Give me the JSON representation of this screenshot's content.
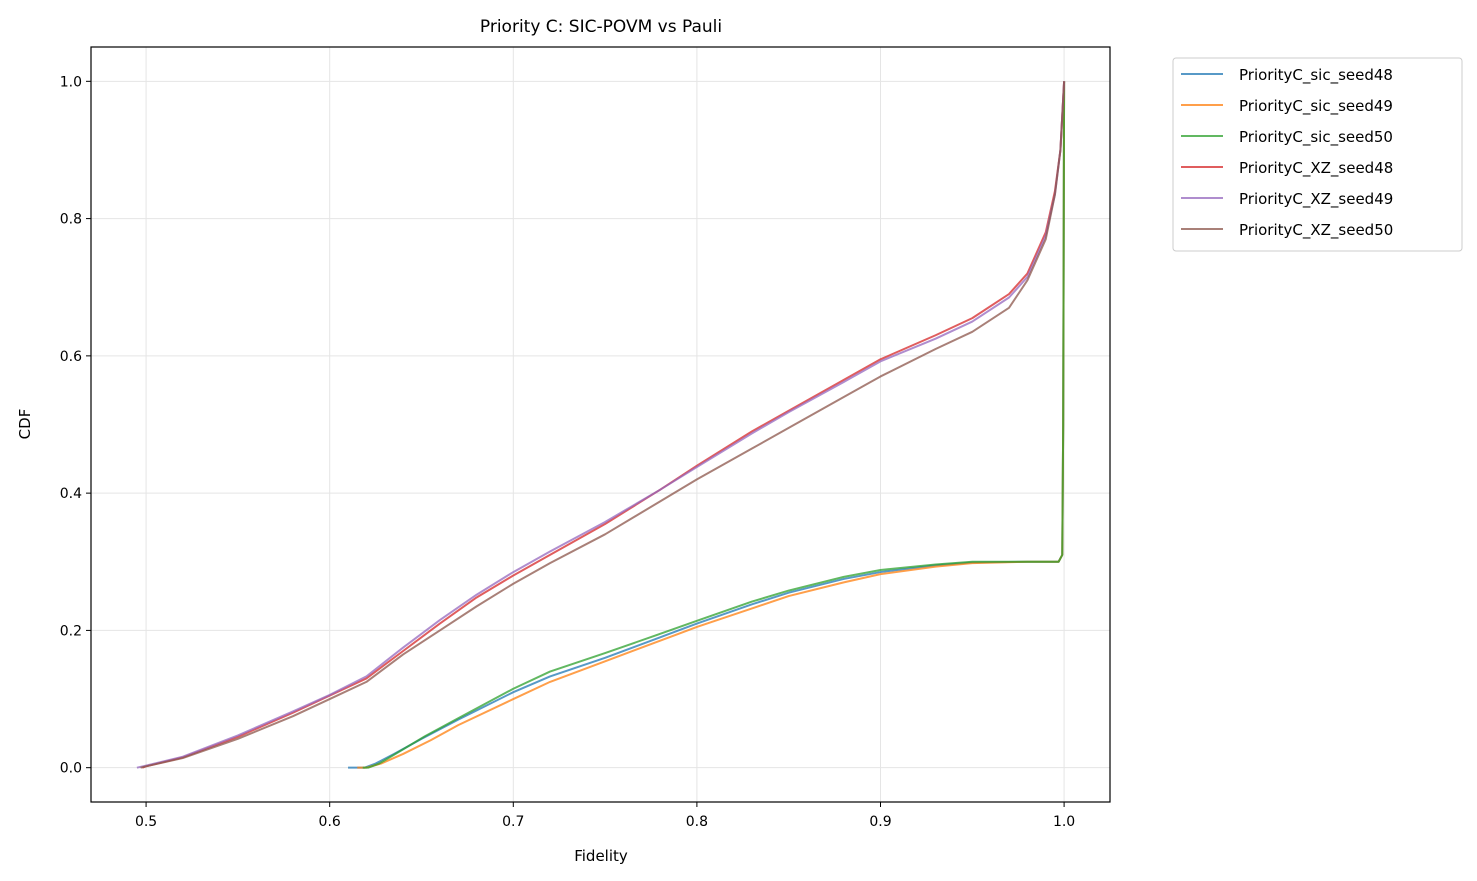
{
  "chart_data": {
    "type": "line",
    "title": "Priority C: SIC-POVM vs Pauli",
    "xlabel": "Fidelity",
    "ylabel": "CDF",
    "xlim": [
      0.47,
      1.025
    ],
    "ylim": [
      -0.05,
      1.05
    ],
    "xticks": [
      0.5,
      0.6,
      0.7,
      0.8,
      0.9,
      1.0
    ],
    "xtick_labels": [
      "0.5",
      "0.6",
      "0.7",
      "0.8",
      "0.9",
      "1.0"
    ],
    "yticks": [
      0.0,
      0.2,
      0.4,
      0.6,
      0.8,
      1.0
    ],
    "ytick_labels": [
      "0.0",
      "0.2",
      "0.4",
      "0.6",
      "0.8",
      "1.0"
    ],
    "grid": true,
    "legend_position": "outside-top-right",
    "series": [
      {
        "name": "PriorityC_sic_seed48",
        "color": "#1f77b4",
        "points": [
          [
            0.61,
            0.0
          ],
          [
            0.619,
            0.0
          ],
          [
            0.625,
            0.006
          ],
          [
            0.635,
            0.02
          ],
          [
            0.65,
            0.042
          ],
          [
            0.67,
            0.07
          ],
          [
            0.7,
            0.11
          ],
          [
            0.72,
            0.133
          ],
          [
            0.75,
            0.16
          ],
          [
            0.78,
            0.19
          ],
          [
            0.8,
            0.21
          ],
          [
            0.83,
            0.238
          ],
          [
            0.85,
            0.255
          ],
          [
            0.88,
            0.275
          ],
          [
            0.9,
            0.285
          ],
          [
            0.93,
            0.295
          ],
          [
            0.95,
            0.299
          ],
          [
            0.98,
            0.3
          ],
          [
            0.997,
            0.3
          ],
          [
            0.999,
            0.31
          ],
          [
            0.9995,
            0.5
          ],
          [
            1.0,
            1.0
          ]
        ]
      },
      {
        "name": "PriorityC_sic_seed49",
        "color": "#ff7f0e",
        "points": [
          [
            0.615,
            0.0
          ],
          [
            0.62,
            0.0
          ],
          [
            0.628,
            0.006
          ],
          [
            0.64,
            0.02
          ],
          [
            0.655,
            0.04
          ],
          [
            0.67,
            0.062
          ],
          [
            0.7,
            0.1
          ],
          [
            0.72,
            0.125
          ],
          [
            0.75,
            0.155
          ],
          [
            0.78,
            0.185
          ],
          [
            0.8,
            0.205
          ],
          [
            0.83,
            0.232
          ],
          [
            0.85,
            0.25
          ],
          [
            0.88,
            0.27
          ],
          [
            0.9,
            0.282
          ],
          [
            0.93,
            0.293
          ],
          [
            0.95,
            0.298
          ],
          [
            0.98,
            0.3
          ],
          [
            0.997,
            0.3
          ],
          [
            0.999,
            0.31
          ],
          [
            0.9995,
            0.5
          ],
          [
            1.0,
            1.0
          ]
        ]
      },
      {
        "name": "PriorityC_sic_seed50",
        "color": "#2ca02c",
        "points": [
          [
            0.618,
            0.0
          ],
          [
            0.621,
            0.0
          ],
          [
            0.627,
            0.006
          ],
          [
            0.637,
            0.022
          ],
          [
            0.652,
            0.046
          ],
          [
            0.67,
            0.072
          ],
          [
            0.7,
            0.115
          ],
          [
            0.72,
            0.14
          ],
          [
            0.75,
            0.167
          ],
          [
            0.78,
            0.195
          ],
          [
            0.8,
            0.214
          ],
          [
            0.83,
            0.242
          ],
          [
            0.85,
            0.258
          ],
          [
            0.88,
            0.278
          ],
          [
            0.9,
            0.288
          ],
          [
            0.93,
            0.296
          ],
          [
            0.95,
            0.3
          ],
          [
            0.98,
            0.3
          ],
          [
            0.997,
            0.3
          ],
          [
            0.999,
            0.31
          ],
          [
            0.9995,
            0.5
          ],
          [
            1.0,
            1.0
          ]
        ]
      },
      {
        "name": "PriorityC_XZ_seed48",
        "color": "#d62728",
        "points": [
          [
            0.498,
            0.0
          ],
          [
            0.5,
            0.002
          ],
          [
            0.52,
            0.015
          ],
          [
            0.55,
            0.045
          ],
          [
            0.58,
            0.08
          ],
          [
            0.6,
            0.105
          ],
          [
            0.62,
            0.13
          ],
          [
            0.64,
            0.17
          ],
          [
            0.66,
            0.21
          ],
          [
            0.68,
            0.248
          ],
          [
            0.7,
            0.28
          ],
          [
            0.72,
            0.31
          ],
          [
            0.75,
            0.355
          ],
          [
            0.78,
            0.405
          ],
          [
            0.8,
            0.44
          ],
          [
            0.83,
            0.49
          ],
          [
            0.85,
            0.52
          ],
          [
            0.88,
            0.565
          ],
          [
            0.9,
            0.595
          ],
          [
            0.93,
            0.63
          ],
          [
            0.95,
            0.655
          ],
          [
            0.97,
            0.69
          ],
          [
            0.98,
            0.72
          ],
          [
            0.99,
            0.78
          ],
          [
            0.995,
            0.84
          ],
          [
            0.998,
            0.9
          ],
          [
            1.0,
            1.0
          ]
        ]
      },
      {
        "name": "PriorityC_XZ_seed49",
        "color": "#9467bd",
        "points": [
          [
            0.495,
            0.0
          ],
          [
            0.5,
            0.003
          ],
          [
            0.52,
            0.016
          ],
          [
            0.55,
            0.047
          ],
          [
            0.58,
            0.082
          ],
          [
            0.6,
            0.106
          ],
          [
            0.62,
            0.133
          ],
          [
            0.64,
            0.175
          ],
          [
            0.66,
            0.215
          ],
          [
            0.68,
            0.252
          ],
          [
            0.7,
            0.285
          ],
          [
            0.72,
            0.315
          ],
          [
            0.75,
            0.358
          ],
          [
            0.78,
            0.405
          ],
          [
            0.8,
            0.438
          ],
          [
            0.83,
            0.487
          ],
          [
            0.85,
            0.518
          ],
          [
            0.88,
            0.562
          ],
          [
            0.9,
            0.592
          ],
          [
            0.93,
            0.625
          ],
          [
            0.95,
            0.65
          ],
          [
            0.97,
            0.685
          ],
          [
            0.98,
            0.715
          ],
          [
            0.99,
            0.775
          ],
          [
            0.995,
            0.835
          ],
          [
            0.998,
            0.9
          ],
          [
            1.0,
            1.0
          ]
        ]
      },
      {
        "name": "PriorityC_XZ_seed50",
        "color": "#8c564b",
        "points": [
          [
            0.497,
            0.0
          ],
          [
            0.5,
            0.002
          ],
          [
            0.52,
            0.014
          ],
          [
            0.55,
            0.042
          ],
          [
            0.58,
            0.075
          ],
          [
            0.6,
            0.1
          ],
          [
            0.62,
            0.125
          ],
          [
            0.64,
            0.165
          ],
          [
            0.66,
            0.2
          ],
          [
            0.68,
            0.235
          ],
          [
            0.7,
            0.268
          ],
          [
            0.72,
            0.298
          ],
          [
            0.75,
            0.34
          ],
          [
            0.78,
            0.388
          ],
          [
            0.8,
            0.42
          ],
          [
            0.83,
            0.465
          ],
          [
            0.85,
            0.495
          ],
          [
            0.88,
            0.54
          ],
          [
            0.9,
            0.57
          ],
          [
            0.93,
            0.61
          ],
          [
            0.95,
            0.635
          ],
          [
            0.97,
            0.67
          ],
          [
            0.98,
            0.71
          ],
          [
            0.99,
            0.77
          ],
          [
            0.995,
            0.835
          ],
          [
            0.998,
            0.9
          ],
          [
            1.0,
            1.0
          ]
        ]
      }
    ]
  }
}
